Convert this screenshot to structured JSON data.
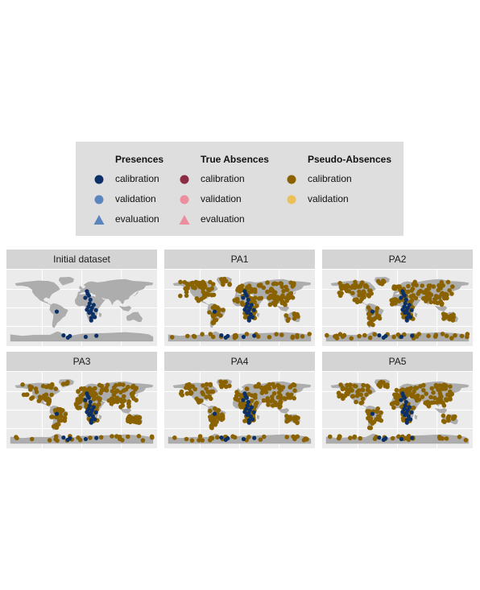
{
  "legend": {
    "groups": [
      {
        "title": "Presences",
        "items": [
          {
            "label": "calibration",
            "color": "#0b3068",
            "shape": "circle"
          },
          {
            "label": "validation",
            "color": "#5a85bd",
            "shape": "circle"
          },
          {
            "label": "evaluation",
            "color": "#5a85bd",
            "shape": "triangle"
          }
        ]
      },
      {
        "title": "True Absences",
        "items": [
          {
            "label": "calibration",
            "color": "#8b2c44",
            "shape": "circle"
          },
          {
            "label": "validation",
            "color": "#ec8ea0",
            "shape": "circle"
          },
          {
            "label": "evaluation",
            "color": "#ec8ea0",
            "shape": "triangle"
          }
        ]
      },
      {
        "title": "Pseudo-Absences",
        "items": [
          {
            "label": "calibration",
            "color": "#8a6200",
            "shape": "circle"
          },
          {
            "label": "validation",
            "color": "#eac159",
            "shape": "circle"
          }
        ]
      }
    ]
  },
  "chart_data": [
    {
      "type": "scatter",
      "title": "Initial dataset",
      "grid": true,
      "xlim": [
        -180,
        180
      ],
      "ylim": [
        -90,
        90
      ],
      "series": [
        {
          "group": "Presences",
          "role": "calibration",
          "color": "#0b3068",
          "points": "presences"
        }
      ]
    },
    {
      "type": "scatter",
      "title": "PA1",
      "grid": true,
      "xlim": [
        -180,
        180
      ],
      "ylim": [
        -90,
        90
      ],
      "series": [
        {
          "group": "Pseudo-Absences",
          "role": "calibration",
          "color": "#8a6200",
          "points": "pseudo",
          "seed": 11
        },
        {
          "group": "Presences",
          "role": "calibration",
          "color": "#0b3068",
          "points": "presences"
        }
      ]
    },
    {
      "type": "scatter",
      "title": "PA2",
      "grid": true,
      "xlim": [
        -180,
        180
      ],
      "ylim": [
        -90,
        90
      ],
      "series": [
        {
          "group": "Pseudo-Absences",
          "role": "calibration",
          "color": "#8a6200",
          "points": "pseudo",
          "seed": 23
        },
        {
          "group": "Presences",
          "role": "calibration",
          "color": "#0b3068",
          "points": "presences"
        }
      ]
    },
    {
      "type": "scatter",
      "title": "PA3",
      "grid": true,
      "xlim": [
        -180,
        180
      ],
      "ylim": [
        -90,
        90
      ],
      "series": [
        {
          "group": "Pseudo-Absences",
          "role": "calibration",
          "color": "#8a6200",
          "points": "pseudo",
          "seed": 37
        },
        {
          "group": "Presences",
          "role": "calibration",
          "color": "#0b3068",
          "points": "presences"
        }
      ]
    },
    {
      "type": "scatter",
      "title": "PA4",
      "grid": true,
      "xlim": [
        -180,
        180
      ],
      "ylim": [
        -90,
        90
      ],
      "series": [
        {
          "group": "Pseudo-Absences",
          "role": "calibration",
          "color": "#8a6200",
          "points": "pseudo",
          "seed": 41
        },
        {
          "group": "Presences",
          "role": "calibration",
          "color": "#0b3068",
          "points": "presences"
        }
      ]
    },
    {
      "type": "scatter",
      "title": "PA5",
      "grid": true,
      "xlim": [
        -180,
        180
      ],
      "ylim": [
        -90,
        90
      ],
      "series": [
        {
          "group": "Pseudo-Absences",
          "role": "calibration",
          "color": "#8a6200",
          "points": "pseudo",
          "seed": 53
        },
        {
          "group": "Presences",
          "role": "calibration",
          "color": "#0b3068",
          "points": "presences"
        }
      ]
    }
  ],
  "presence_points": [
    [
      -63,
      -10
    ],
    [
      13,
      45
    ],
    [
      18,
      33
    ],
    [
      9,
      27
    ],
    [
      22,
      22
    ],
    [
      20,
      12
    ],
    [
      17,
      3
    ],
    [
      26,
      0
    ],
    [
      23,
      -8
    ],
    [
      13,
      -5
    ],
    [
      19,
      -13
    ],
    [
      28,
      -17
    ],
    [
      33,
      -25
    ],
    [
      24,
      -27
    ],
    [
      36,
      -6
    ],
    [
      24,
      -34
    ],
    [
      -46,
      -74
    ],
    [
      -35,
      -80
    ],
    [
      -30,
      -76
    ],
    [
      10,
      -78
    ],
    [
      37,
      -75
    ],
    [
      15,
      38
    ],
    [
      30,
      8
    ]
  ],
  "colors": {
    "land": "#adadad",
    "panel_bg": "#ebebeb",
    "grid": "#ffffff"
  }
}
